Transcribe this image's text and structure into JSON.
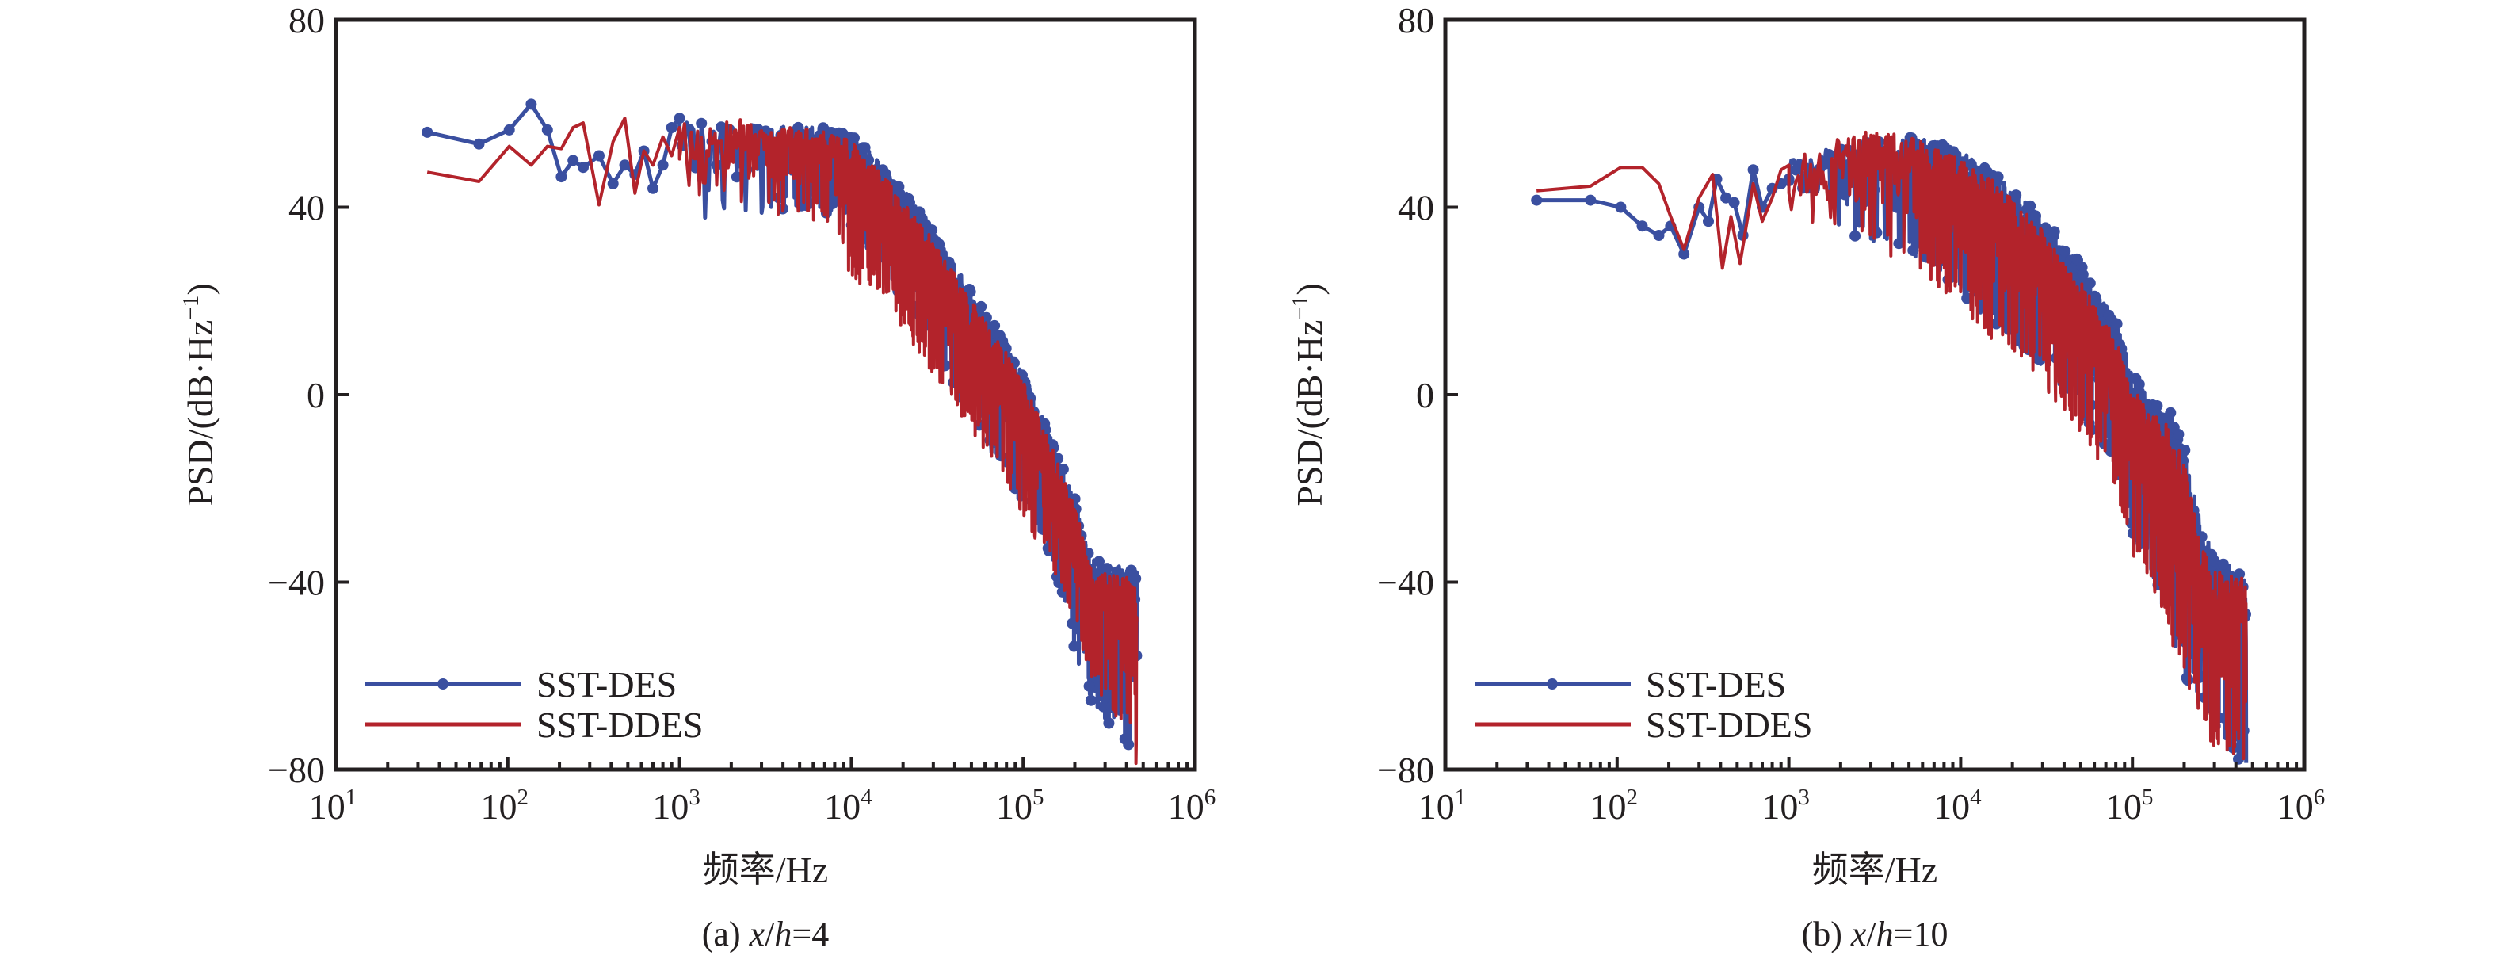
{
  "figure": {
    "series_colors": {
      "SST-DES": "#3a4fa0",
      "SST-DDES": "#b3232b"
    },
    "axis_color": "#231f20"
  },
  "chart_data": [
    {
      "id": "a",
      "type": "line",
      "caption": {
        "prefix": "(a) ",
        "var": "x",
        "slash": "/",
        "var2": "h",
        "suffix": "=4"
      },
      "xlabel": "频率/Hz",
      "ylabel": "PSD/(dB·Hz⁻¹)",
      "ylabel_parts": {
        "main": "PSD/(dB·Hz",
        "sup": "−1",
        "close": ")"
      },
      "xscale": "log",
      "xlim": [
        10,
        1000000
      ],
      "ylim": [
        -80,
        80
      ],
      "yticks": [
        -80,
        -40,
        0,
        40,
        80
      ],
      "ytick_labels": [
        "−80",
        "−40",
        "0",
        "40",
        "80"
      ],
      "xticks": [
        10,
        100,
        1000,
        10000,
        100000,
        1000000
      ],
      "xtick_labels": [
        {
          "base": "10",
          "exp": "1"
        },
        {
          "base": "10",
          "exp": "2"
        },
        {
          "base": "10",
          "exp": "3"
        },
        {
          "base": "10",
          "exp": "4"
        },
        {
          "base": "10",
          "exp": "5"
        },
        {
          "base": "10",
          "exp": "6"
        }
      ],
      "grid": false,
      "legend": {
        "placement": "lower-left",
        "entries": [
          "SST-DES",
          "SST-DDES"
        ]
      },
      "series": [
        {
          "name": "SST-DES",
          "marker": "circle",
          "low_freq_points": [
            [
              34,
              56
            ],
            [
              68,
              53.5
            ],
            [
              102,
              56.5
            ],
            [
              137,
              62
            ],
            [
              170,
              56.5
            ],
            [
              205,
              46.5
            ],
            [
              240,
              50
            ],
            [
              275,
              48.5
            ],
            [
              340,
              51
            ],
            [
              410,
              45
            ],
            [
              480,
              49
            ],
            [
              550,
              47
            ],
            [
              620,
              52
            ],
            [
              700,
              44
            ],
            [
              800,
              49
            ],
            [
              900,
              57
            ],
            [
              1000,
              59
            ]
          ],
          "envelope": {
            "freq": [
              1000,
              1500,
              2000,
              3000,
              5000,
              8000,
              10000,
              15000,
              20000,
              30000,
              50000,
              80000,
              100000,
              150000,
              200000,
              250000,
              300000,
              400000,
              460000
            ],
            "upper": [
              59,
              58,
              57,
              58,
              57,
              57,
              56,
              49,
              44,
              35,
              22,
              11,
              5,
              -10,
              -22,
              -35,
              -36,
              -37,
              -38
            ],
            "lower": [
              45,
              34,
              40,
              38,
              40,
              38,
              35,
              28,
              18,
              10,
              -5,
              -18,
              -24,
              -36,
              -55,
              -66,
              -72,
              -75,
              -78
            ]
          }
        },
        {
          "name": "SST-DDES",
          "marker": "none",
          "low_freq_points": [
            [
              34,
              47.5
            ],
            [
              68,
              45.5
            ],
            [
              102,
              53
            ],
            [
              137,
              49
            ],
            [
              170,
              53
            ],
            [
              205,
              52.5
            ],
            [
              240,
              57
            ],
            [
              275,
              58
            ],
            [
              340,
              40.5
            ],
            [
              410,
              54
            ],
            [
              480,
              59
            ],
            [
              550,
              43
            ],
            [
              620,
              52
            ],
            [
              700,
              49
            ],
            [
              800,
              55
            ],
            [
              900,
              51
            ],
            [
              1000,
              57
            ]
          ],
          "envelope": {
            "freq": [
              1000,
              1500,
              2000,
              3000,
              5000,
              8000,
              10000,
              15000,
              20000,
              30000,
              50000,
              80000,
              100000,
              150000,
              200000,
              250000,
              300000,
              400000,
              460000
            ],
            "upper": [
              58,
              57,
              60,
              57,
              57,
              56,
              54,
              47,
              42,
              33,
              20,
              9,
              3,
              -12,
              -24,
              -37,
              -38,
              -39,
              -40
            ],
            "lower": [
              44,
              42,
              42,
              38,
              38,
              36,
              24,
              22,
              14,
              4,
              -8,
              -20,
              -26,
              -38,
              -50,
              -60,
              -66,
              -72,
              -80
            ]
          }
        }
      ]
    },
    {
      "id": "b",
      "type": "line",
      "caption": {
        "prefix": "(b) ",
        "var": "x",
        "slash": "/",
        "var2": "h",
        "suffix": "=10"
      },
      "xlabel": "频率/Hz",
      "ylabel": "PSD/(dB·Hz⁻¹)",
      "ylabel_parts": {
        "main": "PSD/(dB·Hz",
        "sup": "−1",
        "close": ")"
      },
      "xscale": "log",
      "xlim": [
        10,
        1000000
      ],
      "ylim": [
        -80,
        80
      ],
      "yticks": [
        -80,
        -40,
        0,
        40,
        80
      ],
      "ytick_labels": [
        "−80",
        "−40",
        "0",
        "40",
        "80"
      ],
      "xticks": [
        10,
        100,
        1000,
        10000,
        100000,
        1000000
      ],
      "xtick_labels": [
        {
          "base": "10",
          "exp": "1"
        },
        {
          "base": "10",
          "exp": "2"
        },
        {
          "base": "10",
          "exp": "3"
        },
        {
          "base": "10",
          "exp": "4"
        },
        {
          "base": "10",
          "exp": "5"
        },
        {
          "base": "10",
          "exp": "6"
        }
      ],
      "grid": false,
      "legend": {
        "placement": "lower-left",
        "entries": [
          "SST-DES",
          "SST-DDES"
        ]
      },
      "series": [
        {
          "name": "SST-DES",
          "marker": "circle",
          "low_freq_points": [
            [
              34,
              41.5
            ],
            [
              70,
              41.5
            ],
            [
              105,
              40
            ],
            [
              140,
              36
            ],
            [
              175,
              34
            ],
            [
              205,
              36
            ],
            [
              245,
              30
            ],
            [
              300,
              40
            ],
            [
              340,
              37
            ],
            [
              380,
              46
            ],
            [
              430,
              42
            ],
            [
              480,
              41
            ],
            [
              540,
              34
            ],
            [
              620,
              48
            ],
            [
              700,
              40
            ],
            [
              800,
              44
            ],
            [
              900,
              45
            ],
            [
              1000,
              46
            ]
          ],
          "envelope": {
            "freq": [
              1000,
              1500,
              2000,
              3000,
              5000,
              8000,
              10000,
              15000,
              20000,
              30000,
              50000,
              80000,
              100000,
              130000,
              160000,
              200000,
              250000,
              300000,
              400000,
              460000
            ],
            "upper": [
              50,
              52,
              53,
              54,
              55,
              54,
              52,
              48,
              44,
              38,
              28,
              16,
              5,
              -2,
              -2,
              -10,
              -28,
              -34,
              -37,
              -38
            ],
            "lower": [
              38,
              36,
              34,
              32,
              30,
              26,
              20,
              16,
              12,
              6,
              -4,
              -16,
              -30,
              -40,
              -48,
              -60,
              -68,
              -74,
              -78,
              -80
            ]
          }
        },
        {
          "name": "SST-DDES",
          "marker": "none",
          "low_freq_points": [
            [
              34,
              43.5
            ],
            [
              70,
              44.5
            ],
            [
              105,
              48.5
            ],
            [
              140,
              48.5
            ],
            [
              175,
              45
            ],
            [
              205,
              38
            ],
            [
              245,
              31
            ],
            [
              300,
              42
            ],
            [
              360,
              47
            ],
            [
              410,
              27
            ],
            [
              460,
              38
            ],
            [
              520,
              28
            ],
            [
              620,
              45
            ],
            [
              700,
              37
            ],
            [
              800,
              42
            ],
            [
              900,
              48
            ],
            [
              1000,
              49
            ]
          ],
          "envelope": {
            "freq": [
              1000,
              1500,
              2000,
              3000,
              5000,
              8000,
              10000,
              15000,
              20000,
              30000,
              50000,
              80000,
              100000,
              130000,
              160000,
              200000,
              250000,
              300000,
              400000,
              460000
            ],
            "upper": [
              50,
              54,
              55,
              57,
              55,
              52,
              50,
              46,
              42,
              35,
              24,
              12,
              2,
              -4,
              -6,
              -14,
              -32,
              -37,
              -38,
              -39
            ],
            "lower": [
              38,
              36,
              32,
              30,
              28,
              22,
              18,
              12,
              8,
              2,
              -8,
              -20,
              -34,
              -42,
              -50,
              -62,
              -70,
              -76,
              -79,
              -80
            ]
          }
        }
      ]
    }
  ]
}
